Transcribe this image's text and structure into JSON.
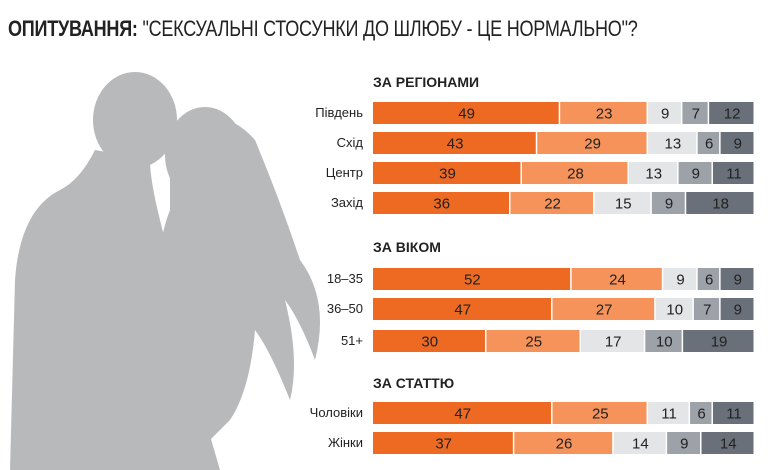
{
  "title_bold": "ОПИТУВАННЯ:",
  "title_rest": " \"СЕКСУАЛЬНІ СТОСУНКИ ДО ШЛЮБУ - ЦЕ НОРМАЛЬНО\"?",
  "chart_data": {
    "type": "bar",
    "orientation": "horizontal",
    "stacked": true,
    "xlim": [
      0,
      100
    ],
    "segment_colors": [
      "#ee6a22",
      "#f5935a",
      "#e4e5e7",
      "#9da1a8",
      "#6a7079"
    ],
    "groups": [
      {
        "title": "ЗА РЕГІОНАМИ",
        "rows": [
          {
            "label": "Південь",
            "values": [
              49,
              23,
              9,
              7,
              12
            ]
          },
          {
            "label": "Схід",
            "values": [
              43,
              29,
              13,
              6,
              9
            ]
          },
          {
            "label": "Центр",
            "values": [
              39,
              28,
              13,
              9,
              11
            ]
          },
          {
            "label": "Захід",
            "values": [
              36,
              22,
              15,
              9,
              18
            ]
          }
        ]
      },
      {
        "title": "ЗА ВІКОМ",
        "rows": [
          {
            "label": "18–35",
            "values": [
              52,
              24,
              9,
              6,
              9
            ]
          },
          {
            "label": "36–50",
            "values": [
              47,
              27,
              10,
              7,
              9
            ]
          },
          {
            "label": "51+",
            "values": [
              30,
              25,
              17,
              10,
              19
            ]
          }
        ]
      },
      {
        "title": "ЗА СТАТТЮ",
        "rows": [
          {
            "label": "Чоловіки",
            "values": [
              47,
              25,
              11,
              6,
              11
            ]
          },
          {
            "label": "Жінки",
            "values": [
              37,
              26,
              14,
              9,
              14
            ]
          }
        ]
      }
    ]
  }
}
